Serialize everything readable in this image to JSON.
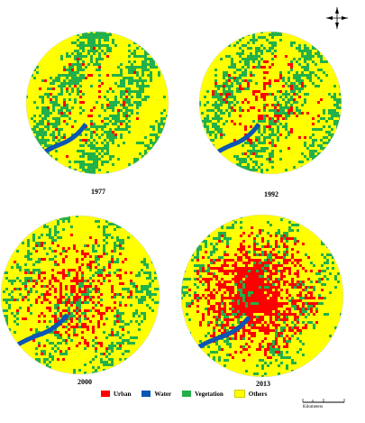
{
  "figure": {
    "panels": [
      {
        "year": "1977",
        "urban": 0.04,
        "vegetation": 0.45,
        "water": 0.01
      },
      {
        "year": "1992",
        "urban": 0.1,
        "vegetation": 0.36,
        "water": 0.01
      },
      {
        "year": "2000",
        "urban": 0.2,
        "vegetation": 0.22,
        "water": 0.01
      },
      {
        "year": "2013",
        "urban": 0.38,
        "vegetation": 0.2,
        "water": 0.01
      }
    ],
    "legend": [
      {
        "label": "Urban",
        "color": "#ff0000"
      },
      {
        "label": "Water",
        "color": "#0b55b5"
      },
      {
        "label": "Vegetation",
        "color": "#22b04a"
      },
      {
        "label": "Others",
        "color": "#ffff00"
      }
    ],
    "scale_label": "Kilometers",
    "north_icon": "north-arrow-icon"
  }
}
